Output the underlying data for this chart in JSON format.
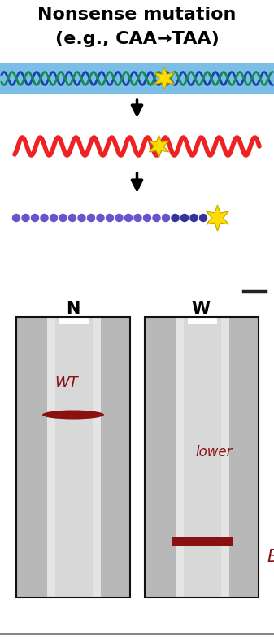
{
  "title_line1": "Nonsense mutation",
  "title_line2": "(e.g., CAA→TAA)",
  "bg_color": "#ffffff",
  "title_color": "#000000",
  "arrow_color": "#000000",
  "dna_bg_color": "#7bbfe8",
  "dna_wave1_color": "#1a44aa",
  "dna_wave2_color": "#1a8855",
  "rna_color": "#ee2222",
  "protein_dot_color": "#6655cc",
  "protein_dot_dark_color": "#333399",
  "star_color": "#ffdd00",
  "star_outline": "#bbaa00",
  "gel_label_N": "N",
  "gel_label_W": "W",
  "gel_label_color": "#000000",
  "gel_border_color": "#111111",
  "gel_bg_outer": "#b8b8b8",
  "gel_bg_inner": "#d8d8d8",
  "gel_lane_color": "#e4e4e4",
  "band_color": "#8B1010",
  "wt_label": "WT",
  "lower_label": "lower",
  "B_label": "B",
  "annotation_color": "#8B1010",
  "bottom_line_color": "#888888",
  "dash_color": "#222222",
  "fig_w": 3.37,
  "fig_h": 7.92,
  "dpi": 100
}
